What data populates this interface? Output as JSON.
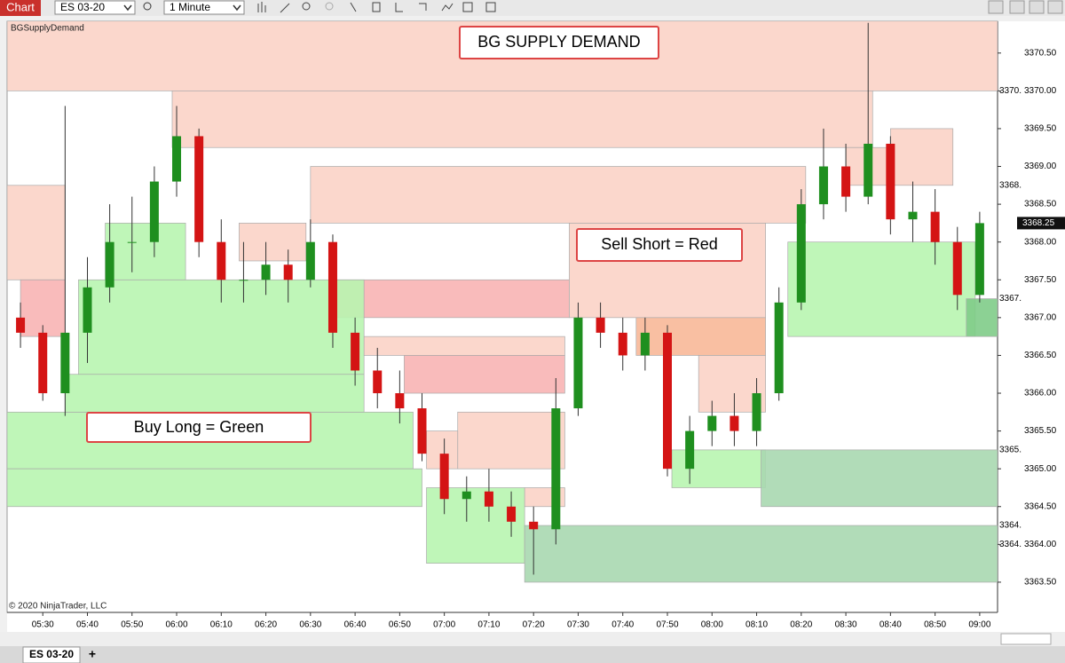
{
  "toolbar": {
    "tab": "Chart",
    "instrument": "ES 03-20",
    "interval": "1 Minute"
  },
  "indicator_name": "BGSupplyDemand",
  "annotations": [
    "BG SUPPLY DEMAND",
    "Sell Short = Red",
    "Buy Long = Green"
  ],
  "copyright": "© 2020 NinjaTrader, LLC",
  "bottom_tab": "ES 03-20",
  "add_tab": "+",
  "chart_data": {
    "type": "candlestick",
    "xlim": [
      "05:22",
      "09:04"
    ],
    "xticks": [
      "05:30",
      "05:40",
      "05:50",
      "06:00",
      "06:10",
      "06:20",
      "06:30",
      "06:40",
      "06:50",
      "07:00",
      "07:10",
      "07:20",
      "07:30",
      "07:40",
      "07:50",
      "08:00",
      "08:10",
      "08:20",
      "08:30",
      "08:40",
      "08:50",
      "09:00"
    ],
    "ylim": [
      3363.1,
      3370.92
    ],
    "yticks": [
      {
        "value": 3363.5,
        "label": "3363.50"
      },
      {
        "value": 3364,
        "label": "3364.00"
      },
      {
        "value": 3364.5,
        "label": "3364.50"
      },
      {
        "value": 3365,
        "label": "3365.00"
      },
      {
        "value": 3365.5,
        "label": "3365.50"
      },
      {
        "value": 3366,
        "label": "3366.00"
      },
      {
        "value": 3366.5,
        "label": "3366.50"
      },
      {
        "value": 3367,
        "label": "3367.00"
      },
      {
        "value": 3367.5,
        "label": "3367.50"
      },
      {
        "value": 3368,
        "label": "3368.00"
      },
      {
        "value": 3368.5,
        "label": "3368.50"
      },
      {
        "value": 3369,
        "label": "3369.00"
      },
      {
        "value": 3369.5,
        "label": "3369.50"
      },
      {
        "value": 3370,
        "label": "3370.00"
      },
      {
        "value": 3370.5,
        "label": "3370.50"
      }
    ],
    "last_price": 3368.25,
    "zone_labels": [
      {
        "value": 3370,
        "label": "3370."
      },
      {
        "value": 3368.75,
        "label": "3368."
      },
      {
        "value": 3367.25,
        "label": "3367."
      },
      {
        "value": 3365.25,
        "label": "3365."
      },
      {
        "value": 3364.25,
        "label": "3364."
      },
      {
        "value": 3364,
        "label": "3364."
      }
    ],
    "zones": [
      {
        "start": "05:22",
        "end": "09:04",
        "low": 3370.0,
        "high": 3371.0,
        "color": "#fbd3c6"
      },
      {
        "start": "05:59",
        "end": "08:36",
        "low": 3369.25,
        "high": 3370.0,
        "color": "#fbd3c6"
      },
      {
        "start": "06:30",
        "end": "08:21",
        "low": 3368.25,
        "high": 3369.0,
        "color": "#fbd3c6"
      },
      {
        "start": "05:22",
        "end": "05:35",
        "low": 3367.5,
        "high": 3368.75,
        "color": "#fbd3c6"
      },
      {
        "start": "05:25",
        "end": "05:35",
        "low": 3366.75,
        "high": 3367.5,
        "color": "#f8b4b4"
      },
      {
        "start": "06:14",
        "end": "06:29",
        "low": 3367.75,
        "high": 3368.25,
        "color": "#fbd3c6"
      },
      {
        "start": "06:35",
        "end": "07:28",
        "low": 3367.0,
        "high": 3367.5,
        "color": "#f8b4b4"
      },
      {
        "start": "07:28",
        "end": "08:12",
        "low": 3367.0,
        "high": 3368.25,
        "color": "#fbd3c6"
      },
      {
        "start": "07:43",
        "end": "08:12",
        "low": 3366.5,
        "high": 3367.0,
        "color": "#f8b898"
      },
      {
        "start": "06:42",
        "end": "07:27",
        "low": 3366.5,
        "high": 3366.75,
        "color": "#fbd3c6"
      },
      {
        "start": "06:51",
        "end": "07:27",
        "low": 3366.0,
        "high": 3366.5,
        "color": "#f8b4b4"
      },
      {
        "start": "07:57",
        "end": "08:12",
        "low": 3365.75,
        "high": 3366.5,
        "color": "#fbd3c6"
      },
      {
        "start": "07:03",
        "end": "07:27",
        "low": 3365.0,
        "high": 3365.75,
        "color": "#fbd3c6"
      },
      {
        "start": "06:56",
        "end": "07:03",
        "low": 3365.0,
        "high": 3365.5,
        "color": "#fbd3c6"
      },
      {
        "start": "07:18",
        "end": "07:27",
        "low": 3364.5,
        "high": 3364.75,
        "color": "#fbd3c6"
      },
      {
        "start": "08:30",
        "end": "08:41",
        "low": 3368.75,
        "high": 3369.25,
        "color": "#fbd3c6"
      },
      {
        "start": "08:40",
        "end": "08:54",
        "low": 3368.75,
        "high": 3369.5,
        "color": "#fbd3c6"
      },
      {
        "start": "05:22",
        "end": "06:53",
        "low": 3365.0,
        "high": 3365.75,
        "color": "#b8f5b0"
      },
      {
        "start": "05:22",
        "end": "06:55",
        "low": 3364.5,
        "high": 3365.0,
        "color": "#b8f5b0"
      },
      {
        "start": "05:35",
        "end": "06:42",
        "low": 3365.75,
        "high": 3366.25,
        "color": "#b8f5b0"
      },
      {
        "start": "05:38",
        "end": "06:42",
        "low": 3366.25,
        "high": 3367.5,
        "color": "#b8f5b0"
      },
      {
        "start": "05:44",
        "end": "06:02",
        "low": 3367.5,
        "high": 3368.25,
        "color": "#b8f5b0"
      },
      {
        "start": "06:56",
        "end": "07:18",
        "low": 3363.75,
        "high": 3364.75,
        "color": "#b8f5b0"
      },
      {
        "start": "07:18",
        "end": "09:04",
        "low": 3363.5,
        "high": 3364.25,
        "color": "#a8d8b0"
      },
      {
        "start": "07:51",
        "end": "08:12",
        "low": 3364.75,
        "high": 3365.25,
        "color": "#b8f5b0"
      },
      {
        "start": "08:11",
        "end": "09:04",
        "low": 3364.5,
        "high": 3365.25,
        "color": "#a8d8b0"
      },
      {
        "start": "08:17",
        "end": "08:59",
        "low": 3366.75,
        "high": 3368.0,
        "color": "#b8f5b0"
      },
      {
        "start": "08:57",
        "end": "09:04",
        "low": 3366.75,
        "high": 3367.25,
        "color": "#80cc88"
      }
    ],
    "x": [
      "05:25",
      "05:30",
      "05:35",
      "05:40",
      "05:45",
      "05:50",
      "05:55",
      "06:00",
      "06:05",
      "06:10",
      "06:15",
      "06:20",
      "06:25",
      "06:30",
      "06:35",
      "06:40",
      "06:45",
      "06:50",
      "06:55",
      "07:00",
      "07:05",
      "07:10",
      "07:15",
      "07:20",
      "07:25",
      "07:30",
      "07:35",
      "07:40",
      "07:45",
      "07:50",
      "07:55",
      "08:00",
      "08:05",
      "08:10",
      "08:15",
      "08:20",
      "08:25",
      "08:30",
      "08:35",
      "08:40",
      "08:45",
      "08:50",
      "08:55",
      "09:00"
    ],
    "open": [
      3367.0,
      3366.8,
      3366.0,
      3366.8,
      3367.4,
      3368.0,
      3368.0,
      3368.8,
      3369.4,
      3368.0,
      3367.5,
      3367.5,
      3367.7,
      3367.5,
      3368.0,
      3366.8,
      3366.3,
      3366.0,
      3365.8,
      3365.2,
      3364.6,
      3364.7,
      3364.5,
      3364.3,
      3364.2,
      3365.8,
      3367.0,
      3366.8,
      3366.5,
      3366.8,
      3365.0,
      3365.5,
      3365.7,
      3365.5,
      3366.0,
      3367.2,
      3368.5,
      3369.0,
      3368.6,
      3369.3,
      3368.3,
      3368.4,
      3368.0,
      3367.3
    ],
    "high": [
      3367.2,
      3366.9,
      3369.8,
      3367.8,
      3368.5,
      3368.6,
      3369.0,
      3369.8,
      3369.5,
      3368.3,
      3368.0,
      3368.0,
      3367.9,
      3368.3,
      3368.1,
      3367.0,
      3366.6,
      3366.3,
      3366.0,
      3365.4,
      3364.9,
      3365.0,
      3364.7,
      3364.5,
      3366.2,
      3367.2,
      3367.2,
      3367.0,
      3367.0,
      3366.9,
      3365.7,
      3365.9,
      3366.0,
      3366.2,
      3367.4,
      3368.7,
      3369.5,
      3369.3,
      3370.9,
      3369.4,
      3368.8,
      3368.7,
      3368.2,
      3368.4
    ],
    "low": [
      3366.6,
      3365.9,
      3365.7,
      3366.4,
      3367.2,
      3367.6,
      3367.8,
      3368.6,
      3367.8,
      3367.2,
      3367.2,
      3367.3,
      3367.2,
      3367.4,
      3366.6,
      3366.1,
      3365.8,
      3365.6,
      3365.1,
      3364.4,
      3364.3,
      3364.3,
      3364.1,
      3363.6,
      3364.0,
      3365.7,
      3366.6,
      3366.3,
      3366.3,
      3364.9,
      3364.8,
      3365.3,
      3365.3,
      3365.3,
      3365.9,
      3367.1,
      3368.3,
      3368.4,
      3368.5,
      3368.1,
      3368.0,
      3367.7,
      3367.1,
      3367.2
    ],
    "close": [
      3366.8,
      3366.0,
      3366.8,
      3367.4,
      3368.0,
      3368.0,
      3368.8,
      3369.4,
      3368.0,
      3367.5,
      3367.5,
      3367.7,
      3367.5,
      3368.0,
      3366.8,
      3366.3,
      3366.0,
      3365.8,
      3365.2,
      3364.6,
      3364.7,
      3364.5,
      3364.3,
      3364.2,
      3365.8,
      3367.0,
      3366.8,
      3366.5,
      3366.8,
      3365.0,
      3365.5,
      3365.7,
      3365.5,
      3366.0,
      3367.2,
      3368.5,
      3369.0,
      3368.6,
      3369.3,
      3368.3,
      3368.4,
      3368.0,
      3367.3,
      3368.25
    ],
    "up_color": "#1f8f1f",
    "down_color": "#d41414"
  }
}
